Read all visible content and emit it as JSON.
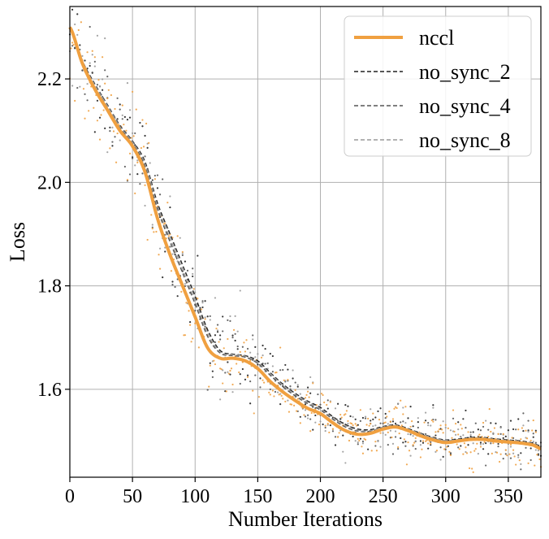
{
  "chart_data": {
    "type": "line",
    "title": "",
    "xlabel": "Number Iterations",
    "ylabel": "Loss",
    "xlim": [
      0,
      376
    ],
    "ylim": [
      1.43,
      2.34
    ],
    "xticks": [
      0,
      50,
      100,
      150,
      200,
      250,
      300,
      350
    ],
    "yticks": [
      1.6,
      1.8,
      2.0,
      2.2
    ],
    "ytick_labels": [
      "1.6",
      "1.8",
      "2.0",
      "2.2"
    ],
    "grid": true,
    "legend_position": "top-right",
    "series": [
      {
        "name": "nccl",
        "color": "#f0a040",
        "style": "solid",
        "x": [
          0,
          10,
          20,
          30,
          40,
          50,
          60,
          70,
          80,
          90,
          100,
          110,
          120,
          130,
          140,
          150,
          160,
          170,
          180,
          190,
          200,
          210,
          220,
          230,
          240,
          250,
          260,
          270,
          280,
          290,
          300,
          310,
          320,
          330,
          340,
          350,
          360,
          370,
          376
        ],
        "y": [
          2.3,
          2.23,
          2.18,
          2.14,
          2.1,
          2.07,
          2.02,
          1.93,
          1.86,
          1.8,
          1.74,
          1.68,
          1.66,
          1.66,
          1.655,
          1.64,
          1.615,
          1.595,
          1.578,
          1.563,
          1.553,
          1.535,
          1.52,
          1.513,
          1.515,
          1.523,
          1.527,
          1.52,
          1.51,
          1.502,
          1.497,
          1.5,
          1.503,
          1.503,
          1.5,
          1.498,
          1.496,
          1.492,
          1.485
        ]
      },
      {
        "name": "no_sync_2",
        "color": "#202020",
        "style": "dashed",
        "x": [
          0,
          10,
          20,
          30,
          40,
          50,
          60,
          70,
          80,
          90,
          100,
          110,
          120,
          130,
          140,
          150,
          160,
          170,
          180,
          190,
          200,
          210,
          220,
          230,
          240,
          250,
          260,
          270,
          280,
          290,
          300,
          310,
          320,
          330,
          340,
          350,
          360,
          370,
          376
        ],
        "y": [
          2.3,
          2.235,
          2.19,
          2.15,
          2.11,
          2.08,
          2.04,
          1.96,
          1.9,
          1.84,
          1.78,
          1.715,
          1.675,
          1.668,
          1.665,
          1.655,
          1.632,
          1.61,
          1.592,
          1.577,
          1.565,
          1.547,
          1.532,
          1.523,
          1.522,
          1.528,
          1.531,
          1.524,
          1.515,
          1.507,
          1.502,
          1.504,
          1.507,
          1.507,
          1.504,
          1.502,
          1.5,
          1.496,
          1.49
        ]
      },
      {
        "name": "no_sync_4",
        "color": "#555555",
        "style": "dashed",
        "x": [
          0,
          10,
          20,
          30,
          40,
          50,
          60,
          70,
          80,
          90,
          100,
          110,
          120,
          130,
          140,
          150,
          160,
          170,
          180,
          190,
          200,
          210,
          220,
          230,
          240,
          250,
          260,
          270,
          280,
          290,
          300,
          310,
          320,
          330,
          340,
          350,
          360,
          370,
          376
        ],
        "y": [
          2.3,
          2.232,
          2.186,
          2.146,
          2.106,
          2.076,
          2.032,
          1.948,
          1.885,
          1.825,
          1.765,
          1.702,
          1.67,
          1.665,
          1.662,
          1.65,
          1.627,
          1.605,
          1.587,
          1.572,
          1.56,
          1.542,
          1.527,
          1.519,
          1.519,
          1.526,
          1.529,
          1.522,
          1.513,
          1.505,
          1.5,
          1.502,
          1.505,
          1.505,
          1.502,
          1.5,
          1.498,
          1.494,
          1.488
        ]
      },
      {
        "name": "no_sync_8",
        "color": "#9a9a9a",
        "style": "dashed",
        "x": [
          0,
          10,
          20,
          30,
          40,
          50,
          60,
          70,
          80,
          90,
          100,
          110,
          120,
          130,
          140,
          150,
          160,
          170,
          180,
          190,
          200,
          210,
          220,
          230,
          240,
          250,
          260,
          270,
          280,
          290,
          300,
          310,
          320,
          330,
          340,
          350,
          360,
          370,
          376
        ],
        "y": [
          2.3,
          2.233,
          2.188,
          2.148,
          2.108,
          2.078,
          2.036,
          1.954,
          1.892,
          1.832,
          1.772,
          1.708,
          1.672,
          1.667,
          1.664,
          1.652,
          1.63,
          1.608,
          1.59,
          1.575,
          1.562,
          1.545,
          1.53,
          1.521,
          1.52,
          1.527,
          1.53,
          1.523,
          1.514,
          1.506,
          1.501,
          1.503,
          1.506,
          1.506,
          1.503,
          1.501,
          1.499,
          1.495,
          1.489
        ]
      }
    ]
  }
}
